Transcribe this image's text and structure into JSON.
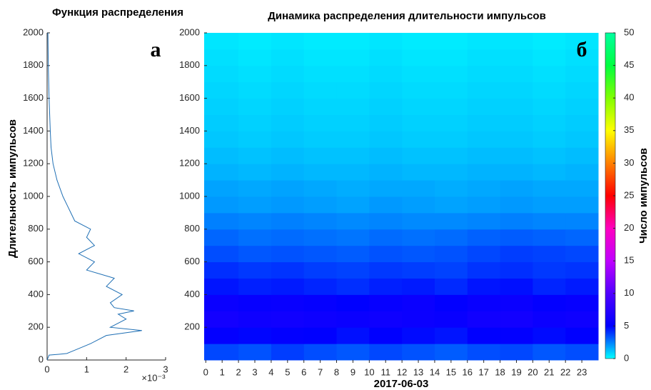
{
  "chart_data": [
    {
      "type": "line",
      "title": "Функция распределения",
      "ylabel": "Длительность импульсов",
      "panel_label": "а",
      "xlim": [
        0,
        3
      ],
      "xticks": [
        0,
        1,
        2,
        3
      ],
      "x_multiplier": "×10⁻³",
      "ylim": [
        0,
        2000
      ],
      "yticks": [
        0,
        200,
        400,
        600,
        800,
        1000,
        1200,
        1400,
        1600,
        1800,
        2000
      ],
      "color": "#1f6fb4",
      "x": [
        0,
        0.05,
        0.3,
        0.5,
        0.6,
        0.9,
        1.1,
        1.5,
        2.4,
        1.6,
        2.0,
        1.8,
        2.2,
        1.7,
        1.6,
        1.9,
        1.5,
        1.7,
        1.0,
        1.2,
        0.8,
        1.2,
        1.0,
        1.1,
        0.7,
        0.6,
        0.5,
        0.4,
        0.25,
        0.15,
        0.1,
        0.08,
        0.05,
        0.03,
        0.02
      ],
      "y": [
        0,
        30,
        35,
        40,
        50,
        80,
        100,
        150,
        180,
        200,
        250,
        280,
        300,
        320,
        350,
        400,
        450,
        500,
        550,
        600,
        650,
        700,
        750,
        800,
        850,
        900,
        950,
        1000,
        1100,
        1200,
        1300,
        1400,
        1600,
        1800,
        2000
      ]
    },
    {
      "type": "heatmap",
      "title": "Динамика распределения длительности импульсов",
      "xlabel": "2017-06-03",
      "panel_label": "б",
      "xlim": [
        -0.1,
        24
      ],
      "xticks": [
        0,
        1,
        2,
        3,
        4,
        5,
        6,
        7,
        8,
        9,
        10,
        11,
        12,
        13,
        14,
        15,
        16,
        17,
        18,
        19,
        20,
        21,
        22,
        23
      ],
      "ylim": [
        0,
        2000
      ],
      "yticks": [
        200,
        400,
        600,
        800,
        1000,
        1200,
        1400,
        1600,
        1800,
        2000
      ],
      "x_edges": [
        -0.1,
        2,
        4,
        6,
        8,
        10,
        12,
        14,
        16,
        18,
        20,
        22,
        24
      ],
      "y_edges": [
        0,
        100,
        200,
        300,
        400,
        500,
        600,
        700,
        800,
        900,
        1000,
        1100,
        1200,
        1300,
        1400,
        1500,
        1600,
        1700,
        1800,
        1900,
        2000
      ],
      "values": [
        [
          3.6,
          3.4,
          3.8,
          3.5,
          3.3,
          3.6,
          3.4,
          3.2,
          3.5,
          3.6,
          3.3,
          3.5
        ],
        [
          5.2,
          4.9,
          5.1,
          5.0,
          4.7,
          5.0,
          4.8,
          4.6,
          5.0,
          5.1,
          4.8,
          5.0
        ],
        [
          6.2,
          5.9,
          6.0,
          5.8,
          5.6,
          5.9,
          5.7,
          5.5,
          6.0,
          6.1,
          5.7,
          5.9
        ],
        [
          5.6,
          5.4,
          5.5,
          5.3,
          5.0,
          5.4,
          5.6,
          5.1,
          5.5,
          5.6,
          5.2,
          5.4
        ],
        [
          4.6,
          4.4,
          4.5,
          4.3,
          4.1,
          4.4,
          4.5,
          4.2,
          4.6,
          4.7,
          4.3,
          4.5
        ],
        [
          4.1,
          3.9,
          4.0,
          3.8,
          3.7,
          3.9,
          3.8,
          3.7,
          4.0,
          4.1,
          3.9,
          4.0
        ],
        [
          3.5,
          3.3,
          3.4,
          3.3,
          3.2,
          3.4,
          3.3,
          3.4,
          3.6,
          3.8,
          3.7,
          3.6
        ],
        [
          3.0,
          2.8,
          2.9,
          2.8,
          2.7,
          2.9,
          2.8,
          2.9,
          3.1,
          3.2,
          3.1,
          3.0
        ],
        [
          2.5,
          2.4,
          2.5,
          2.4,
          2.3,
          2.4,
          2.3,
          2.3,
          2.4,
          2.5,
          2.4,
          2.4
        ],
        [
          2.0,
          1.9,
          2.0,
          1.9,
          1.8,
          2.0,
          1.9,
          1.8,
          1.9,
          2.0,
          1.9,
          1.9
        ],
        [
          1.8,
          1.7,
          1.8,
          1.7,
          1.6,
          1.7,
          1.7,
          1.6,
          1.7,
          1.8,
          1.7,
          1.7
        ],
        [
          1.5,
          1.4,
          1.5,
          1.4,
          1.4,
          1.5,
          1.4,
          1.4,
          1.5,
          1.5,
          1.4,
          1.5
        ],
        [
          1.3,
          1.2,
          1.3,
          1.2,
          1.2,
          1.3,
          1.2,
          1.2,
          1.3,
          1.3,
          1.2,
          1.3
        ],
        [
          1.1,
          1.0,
          1.1,
          1.0,
          1.0,
          1.1,
          1.0,
          1.0,
          1.1,
          1.1,
          1.0,
          1.1
        ],
        [
          1.0,
          0.9,
          1.0,
          0.9,
          0.9,
          1.0,
          0.9,
          0.9,
          1.0,
          1.0,
          0.9,
          1.0
        ],
        [
          0.9,
          0.8,
          0.9,
          0.8,
          0.8,
          0.9,
          0.8,
          0.8,
          0.9,
          0.9,
          0.8,
          0.9
        ],
        [
          0.8,
          0.7,
          0.8,
          0.7,
          0.7,
          0.8,
          0.7,
          0.7,
          0.8,
          0.8,
          0.7,
          0.8
        ],
        [
          0.7,
          0.6,
          0.7,
          0.6,
          0.6,
          0.7,
          0.6,
          0.6,
          0.7,
          0.7,
          0.6,
          0.7
        ],
        [
          0.6,
          0.5,
          0.6,
          0.5,
          0.5,
          0.6,
          0.5,
          0.5,
          0.6,
          0.6,
          0.5,
          0.6
        ],
        [
          0.5,
          0.4,
          0.5,
          0.4,
          0.4,
          0.5,
          0.4,
          0.4,
          0.5,
          0.5,
          0.4,
          0.5
        ]
      ],
      "colorbar": {
        "label": "Число импульсов",
        "lim": [
          0,
          50
        ],
        "ticks": [
          0,
          5,
          10,
          15,
          20,
          25,
          30,
          35,
          40,
          45,
          50
        ],
        "colormap": [
          {
            "value": 0,
            "color": "#00ffff"
          },
          {
            "value": 5,
            "color": "#0000ff"
          },
          {
            "value": 10,
            "color": "#5000ff"
          },
          {
            "value": 15,
            "color": "#c000ff"
          },
          {
            "value": 20,
            "color": "#ff00c0"
          },
          {
            "value": 25,
            "color": "#ff0000"
          },
          {
            "value": 30,
            "color": "#ff8000"
          },
          {
            "value": 35,
            "color": "#ffff00"
          },
          {
            "value": 40,
            "color": "#80ff00"
          },
          {
            "value": 45,
            "color": "#00ff40"
          },
          {
            "value": 50,
            "color": "#00ffa0"
          }
        ]
      }
    }
  ]
}
